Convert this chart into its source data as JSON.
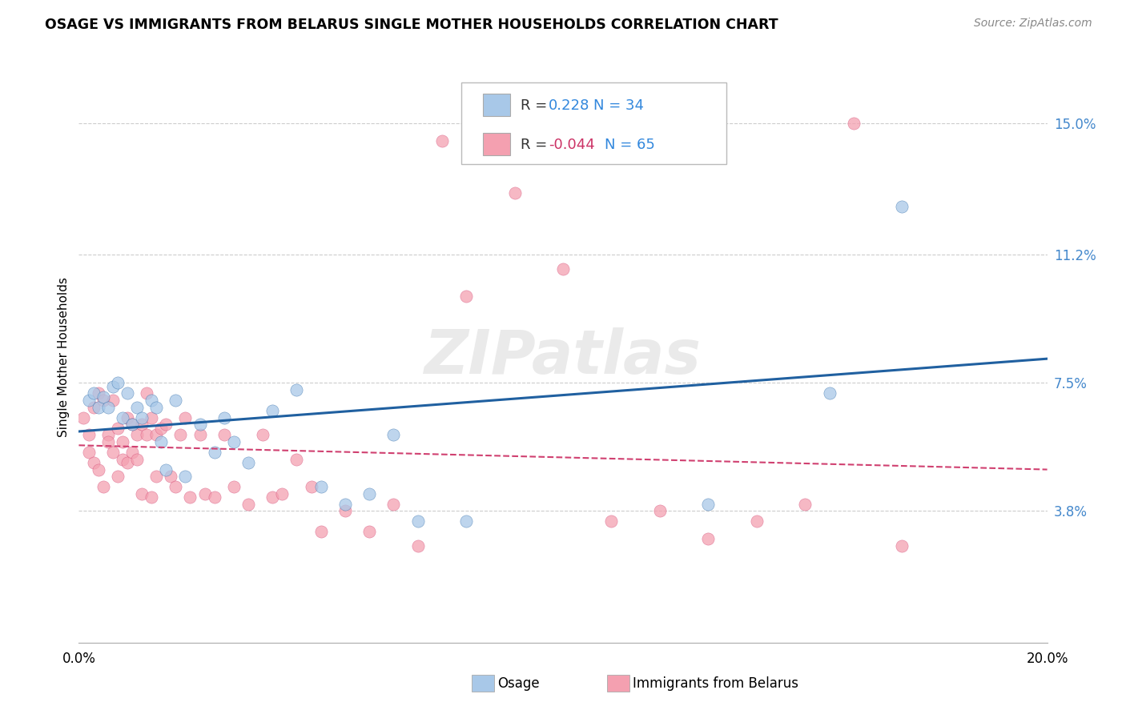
{
  "title": "OSAGE VS IMMIGRANTS FROM BELARUS SINGLE MOTHER HOUSEHOLDS CORRELATION CHART",
  "source": "Source: ZipAtlas.com",
  "ylabel": "Single Mother Households",
  "xlim": [
    0.0,
    0.2
  ],
  "ylim": [
    0.0,
    0.165
  ],
  "xticks": [
    0.0,
    0.05,
    0.1,
    0.15,
    0.2
  ],
  "xticklabels": [
    "0.0%",
    "",
    "",
    "",
    "20.0%"
  ],
  "ytick_labels_right": [
    "3.8%",
    "7.5%",
    "11.2%",
    "15.0%"
  ],
  "ytick_vals_right": [
    0.038,
    0.075,
    0.112,
    0.15
  ],
  "osage_R": "0.228",
  "osage_N": "34",
  "belarus_R": "-0.044",
  "belarus_N": "65",
  "osage_color": "#a8c8e8",
  "belarus_color": "#f4a0b0",
  "osage_line_color": "#2060a0",
  "belarus_line_color": "#d04070",
  "watermark": "ZIPatlas",
  "osage_x": [
    0.002,
    0.003,
    0.004,
    0.005,
    0.006,
    0.007,
    0.008,
    0.009,
    0.01,
    0.011,
    0.012,
    0.013,
    0.015,
    0.016,
    0.017,
    0.018,
    0.02,
    0.022,
    0.025,
    0.028,
    0.03,
    0.032,
    0.035,
    0.04,
    0.045,
    0.05,
    0.055,
    0.06,
    0.065,
    0.07,
    0.08,
    0.13,
    0.155,
    0.17
  ],
  "osage_y": [
    0.07,
    0.072,
    0.068,
    0.071,
    0.068,
    0.074,
    0.075,
    0.065,
    0.072,
    0.063,
    0.068,
    0.065,
    0.07,
    0.068,
    0.058,
    0.05,
    0.07,
    0.048,
    0.063,
    0.055,
    0.065,
    0.058,
    0.052,
    0.067,
    0.073,
    0.045,
    0.04,
    0.043,
    0.06,
    0.035,
    0.035,
    0.04,
    0.072,
    0.126
  ],
  "belarus_x": [
    0.001,
    0.002,
    0.002,
    0.003,
    0.003,
    0.004,
    0.004,
    0.005,
    0.005,
    0.006,
    0.006,
    0.007,
    0.007,
    0.008,
    0.008,
    0.009,
    0.009,
    0.01,
    0.01,
    0.011,
    0.011,
    0.012,
    0.012,
    0.013,
    0.013,
    0.014,
    0.014,
    0.015,
    0.015,
    0.016,
    0.016,
    0.017,
    0.018,
    0.019,
    0.02,
    0.021,
    0.022,
    0.023,
    0.025,
    0.026,
    0.028,
    0.03,
    0.032,
    0.035,
    0.038,
    0.04,
    0.042,
    0.045,
    0.048,
    0.05,
    0.055,
    0.06,
    0.065,
    0.07,
    0.075,
    0.08,
    0.09,
    0.1,
    0.11,
    0.12,
    0.13,
    0.14,
    0.15,
    0.16,
    0.17
  ],
  "belarus_y": [
    0.065,
    0.06,
    0.055,
    0.052,
    0.068,
    0.05,
    0.072,
    0.045,
    0.07,
    0.06,
    0.058,
    0.055,
    0.07,
    0.062,
    0.048,
    0.058,
    0.053,
    0.065,
    0.052,
    0.063,
    0.055,
    0.06,
    0.053,
    0.063,
    0.043,
    0.072,
    0.06,
    0.065,
    0.042,
    0.06,
    0.048,
    0.062,
    0.063,
    0.048,
    0.045,
    0.06,
    0.065,
    0.042,
    0.06,
    0.043,
    0.042,
    0.06,
    0.045,
    0.04,
    0.06,
    0.042,
    0.043,
    0.053,
    0.045,
    0.032,
    0.038,
    0.032,
    0.04,
    0.028,
    0.145,
    0.1,
    0.13,
    0.108,
    0.035,
    0.038,
    0.03,
    0.035,
    0.04,
    0.15,
    0.028
  ],
  "osage_line_x0": 0.0,
  "osage_line_y0": 0.061,
  "osage_line_x1": 0.2,
  "osage_line_y1": 0.082,
  "belarus_line_x0": 0.0,
  "belarus_line_y0": 0.057,
  "belarus_line_x1": 0.2,
  "belarus_line_y1": 0.05
}
